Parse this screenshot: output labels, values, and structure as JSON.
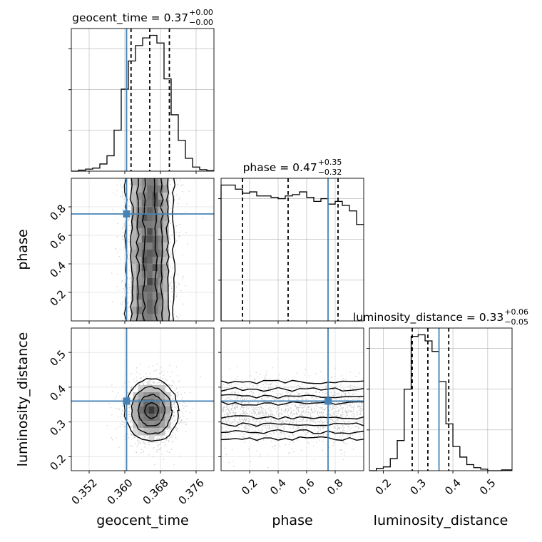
{
  "chart_data": {
    "type": "corner",
    "parameters": [
      {
        "name": "geocent_time",
        "xlim": [
          0.348,
          0.38
        ],
        "ticks": [
          0.352,
          0.36,
          0.368,
          0.376
        ],
        "tick_labels": [
          "0.352",
          "0.360",
          "0.368",
          "0.376"
        ],
        "quantiles": [
          0.3614,
          0.3656,
          0.37
        ],
        "truth": 0.3604,
        "title_main": "geocent_time = 0.37",
        "title_plus": "+0.00",
        "title_minus": "−0.00",
        "hist_edges_start": 0.348,
        "hist_bin_width": 0.0016,
        "hist_counts": [
          0,
          2,
          4,
          6,
          14,
          30,
          80,
          160,
          215,
          245,
          260,
          265,
          250,
          180,
          110,
          60,
          25,
          8,
          3,
          1
        ]
      },
      {
        "name": "phase",
        "xlim": [
          0.0,
          1.0
        ],
        "ticks": [
          0.2,
          0.4,
          0.6,
          0.8
        ],
        "tick_labels": [
          "0.2",
          "0.4",
          "0.6",
          "0.8"
        ],
        "quantiles": [
          0.15,
          0.47,
          0.82
        ],
        "truth": 0.75,
        "title_main": "phase = 0.47",
        "title_plus": "+0.35",
        "title_minus": "−0.32",
        "hist_edges_start": 0.0,
        "hist_bin_width": 0.05,
        "hist_counts": [
          100,
          100,
          97,
          94,
          95,
          92,
          92,
          91,
          90,
          92,
          93,
          95,
          91,
          88,
          90,
          86,
          88,
          85,
          81,
          71
        ]
      },
      {
        "name": "luminosity_distance",
        "xlim": [
          0.16,
          0.57
        ],
        "ticks": [
          0.2,
          0.3,
          0.4,
          0.5
        ],
        "tick_labels": [
          "0.2",
          "0.3",
          "0.4",
          "0.5"
        ],
        "quantiles": [
          0.283,
          0.328,
          0.388
        ],
        "truth": 0.36,
        "title_main": "luminosity_distance = 0.33",
        "title_plus": "+0.06",
        "title_minus": "−0.05",
        "hist_edges_start": 0.16,
        "hist_bin_width": 0.02,
        "hist_counts": [
          0,
          3,
          5,
          16,
          40,
          108,
          178,
          180,
          172,
          158,
          118,
          62,
          32,
          18,
          8,
          4,
          2,
          0,
          0,
          1,
          1
        ]
      }
    ],
    "panel2d": [
      {
        "row": 1,
        "col": 0,
        "ylim": [
          0.0,
          1.0
        ],
        "yticks": [
          0.2,
          0.4,
          0.6,
          0.8
        ],
        "ytick_labels": [
          "0.2",
          "0.4",
          "0.6",
          "0.8"
        ],
        "center": [
          0.3656,
          0.5
        ],
        "sigma": [
          0.003,
          0.3
        ],
        "y_uniform": true
      },
      {
        "row": 2,
        "col": 0,
        "ylim": [
          0.16,
          0.57
        ],
        "yticks": [
          0.2,
          0.3,
          0.4,
          0.5
        ],
        "ytick_labels": [
          "0.2",
          "0.3",
          "0.4",
          "0.5"
        ],
        "center": [
          0.366,
          0.333
        ],
        "sigma": [
          0.003,
          0.045
        ],
        "y_uniform": false
      },
      {
        "row": 2,
        "col": 1,
        "ylim": [
          0.16,
          0.57
        ],
        "yticks": [
          0.2,
          0.3,
          0.4,
          0.5
        ],
        "ytick_labels": [
          "0.2",
          "0.3",
          "0.4",
          "0.5"
        ],
        "center": [
          0.5,
          0.333
        ],
        "sigma": [
          0.3,
          0.045
        ],
        "y_uniform": true
      }
    ],
    "colors": {
      "truth": "#4682b4",
      "quantile": "#000000",
      "hist": "#000000",
      "grid": "#b0b0b0",
      "scatter": "#9a9a9a"
    }
  }
}
